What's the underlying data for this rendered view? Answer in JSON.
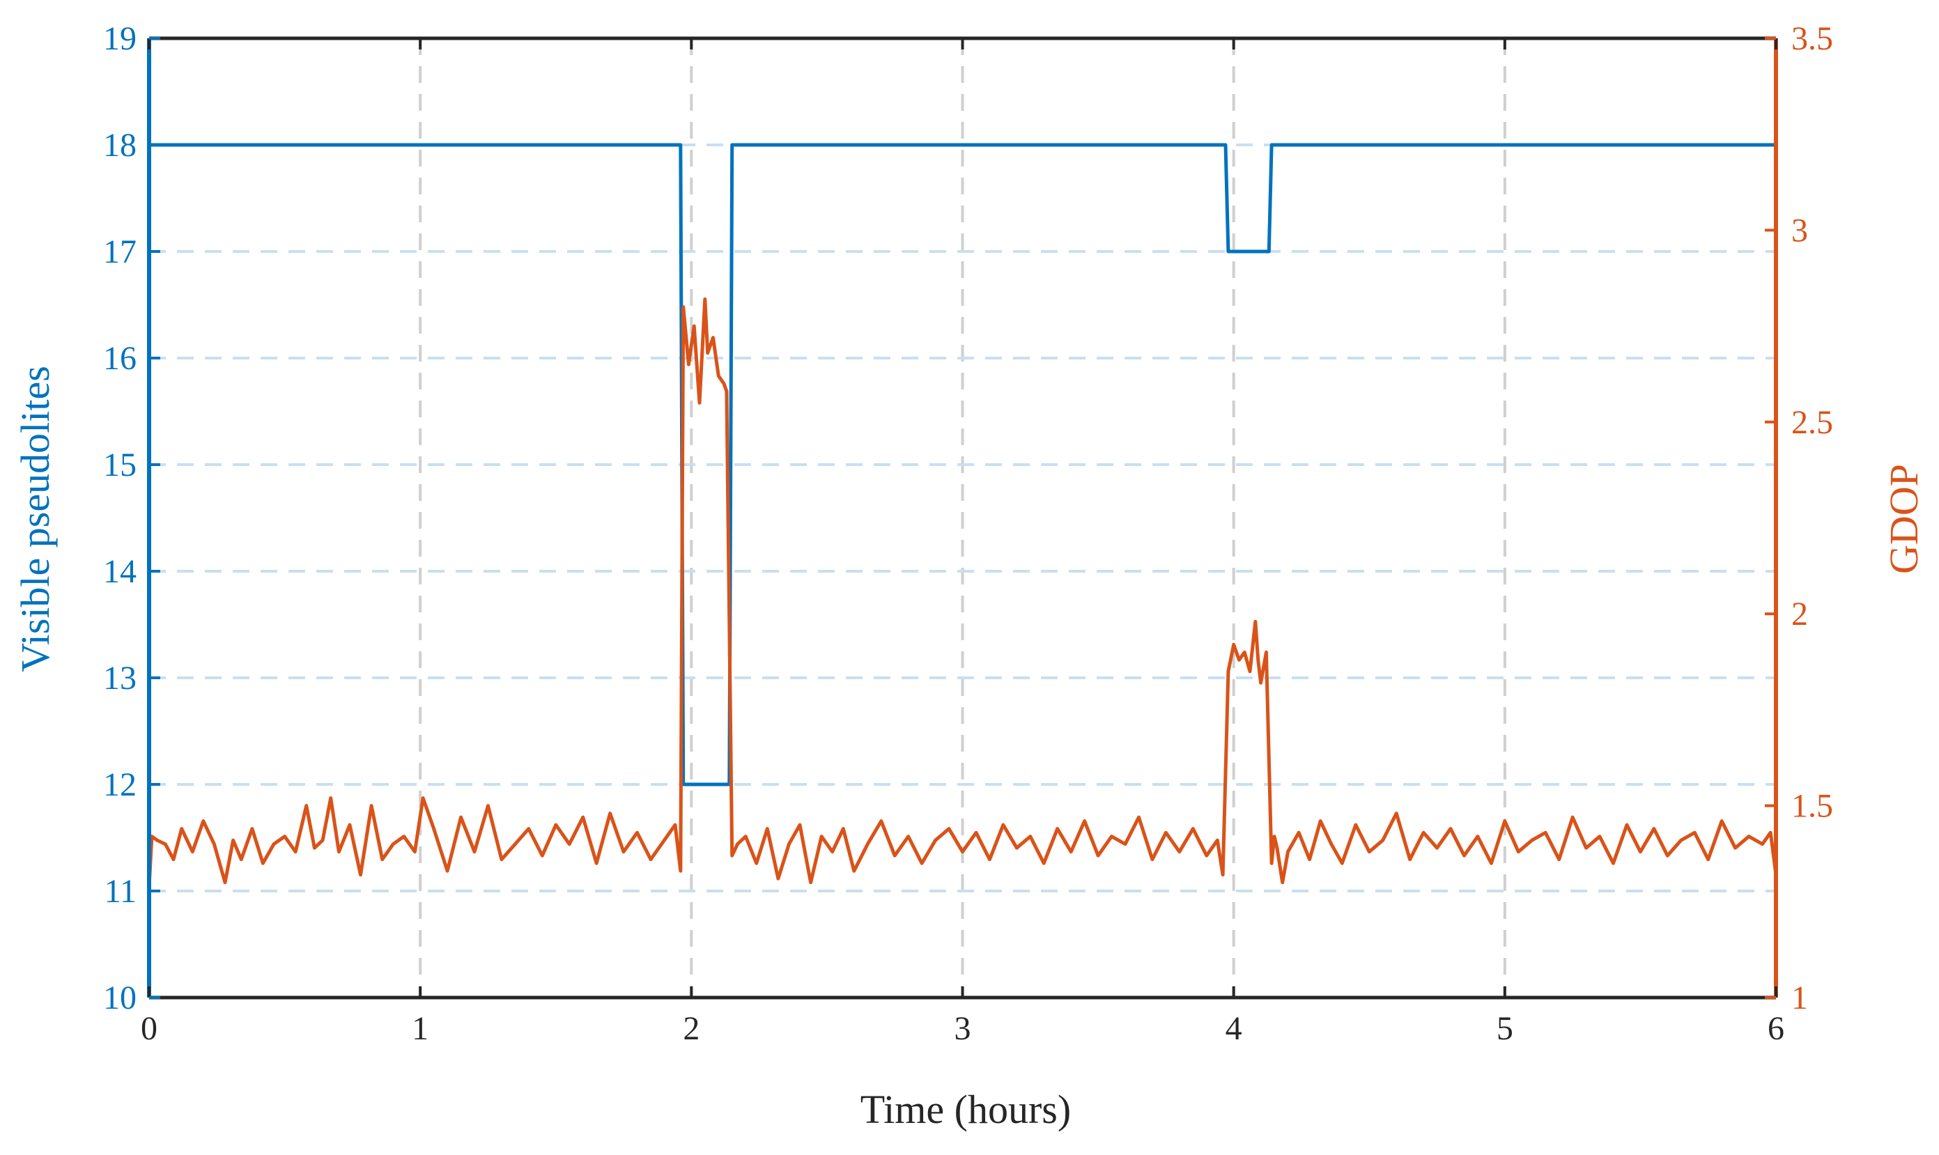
{
  "chart_data": {
    "type": "line",
    "xlabel": "Time (hours)",
    "ylabel_left": "Visible pseudolites",
    "ylabel_right": "GDOP",
    "xlim": [
      0,
      6
    ],
    "ylim_left": [
      10,
      19
    ],
    "ylim_right": [
      1,
      3.5
    ],
    "x_ticks": [
      "0",
      "1",
      "2",
      "3",
      "4",
      "5",
      "6"
    ],
    "y_left_ticks": [
      "10",
      "11",
      "12",
      "13",
      "14",
      "15",
      "16",
      "17",
      "18",
      "19"
    ],
    "y_right_ticks": [
      "1",
      "1.5",
      "2",
      "2.5",
      "3",
      "3.5"
    ],
    "grid": true,
    "colors": {
      "left": "#0072BD",
      "right": "#D95319",
      "axis": "#262626",
      "grid_x": "#cfcfcf",
      "grid_y": "#c9dff0"
    },
    "series": [
      {
        "axis": "left",
        "x": [
          0,
          1.96,
          1.97,
          2.14,
          2.15,
          3.97,
          3.98,
          4.13,
          4.14,
          6
        ],
        "y": [
          18,
          18,
          12,
          12,
          18,
          18,
          17,
          17,
          18,
          18
        ]
      },
      {
        "axis": "right",
        "x": [
          0,
          0.01,
          0.03,
          0.06,
          0.09,
          0.12,
          0.16,
          0.2,
          0.24,
          0.28,
          0.31,
          0.34,
          0.38,
          0.42,
          0.46,
          0.5,
          0.54,
          0.58,
          0.61,
          0.64,
          0.67,
          0.7,
          0.74,
          0.78,
          0.82,
          0.86,
          0.9,
          0.94,
          0.98,
          1.01,
          1.05,
          1.1,
          1.15,
          1.2,
          1.25,
          1.3,
          1.35,
          1.4,
          1.45,
          1.5,
          1.55,
          1.6,
          1.65,
          1.7,
          1.75,
          1.8,
          1.85,
          1.9,
          1.94,
          1.96,
          1.97,
          1.99,
          2.01,
          2.03,
          2.05,
          2.06,
          2.08,
          2.1,
          2.12,
          2.13,
          2.15,
          2.17,
          2.2,
          2.24,
          2.28,
          2.32,
          2.36,
          2.4,
          2.44,
          2.48,
          2.52,
          2.56,
          2.6,
          2.65,
          2.7,
          2.75,
          2.8,
          2.85,
          2.9,
          2.95,
          3.0,
          3.05,
          3.1,
          3.15,
          3.2,
          3.25,
          3.3,
          3.35,
          3.4,
          3.45,
          3.5,
          3.55,
          3.6,
          3.65,
          3.7,
          3.75,
          3.8,
          3.85,
          3.9,
          3.94,
          3.96,
          3.98,
          4.0,
          4.02,
          4.04,
          4.06,
          4.08,
          4.09,
          4.1,
          4.12,
          4.14,
          4.15,
          4.16,
          4.18,
          4.2,
          4.24,
          4.28,
          4.32,
          4.36,
          4.4,
          4.45,
          4.5,
          4.55,
          4.6,
          4.65,
          4.7,
          4.75,
          4.8,
          4.85,
          4.9,
          4.95,
          5.0,
          5.05,
          5.1,
          5.15,
          5.2,
          5.25,
          5.3,
          5.35,
          5.4,
          5.45,
          5.5,
          5.55,
          5.6,
          5.65,
          5.7,
          5.75,
          5.8,
          5.85,
          5.9,
          5.95,
          5.98,
          6.0
        ],
        "y": [
          1.29,
          1.42,
          1.41,
          1.4,
          1.36,
          1.44,
          1.38,
          1.46,
          1.4,
          1.3,
          1.41,
          1.36,
          1.44,
          1.35,
          1.4,
          1.42,
          1.38,
          1.5,
          1.39,
          1.41,
          1.52,
          1.38,
          1.45,
          1.32,
          1.5,
          1.36,
          1.4,
          1.42,
          1.38,
          1.52,
          1.44,
          1.33,
          1.47,
          1.38,
          1.5,
          1.36,
          1.4,
          1.44,
          1.37,
          1.45,
          1.4,
          1.47,
          1.35,
          1.48,
          1.38,
          1.43,
          1.36,
          1.41,
          1.45,
          1.33,
          2.8,
          2.65,
          2.75,
          2.55,
          2.82,
          2.68,
          2.72,
          2.62,
          2.6,
          2.58,
          1.37,
          1.4,
          1.42,
          1.35,
          1.44,
          1.31,
          1.4,
          1.45,
          1.3,
          1.42,
          1.38,
          1.44,
          1.33,
          1.4,
          1.46,
          1.37,
          1.42,
          1.35,
          1.41,
          1.44,
          1.38,
          1.43,
          1.36,
          1.45,
          1.39,
          1.42,
          1.35,
          1.44,
          1.38,
          1.46,
          1.37,
          1.42,
          1.4,
          1.47,
          1.36,
          1.43,
          1.38,
          1.44,
          1.37,
          1.41,
          1.32,
          1.85,
          1.92,
          1.88,
          1.9,
          1.85,
          1.98,
          1.88,
          1.82,
          1.9,
          1.35,
          1.42,
          1.39,
          1.3,
          1.38,
          1.43,
          1.36,
          1.46,
          1.4,
          1.35,
          1.45,
          1.38,
          1.41,
          1.48,
          1.36,
          1.43,
          1.39,
          1.44,
          1.37,
          1.42,
          1.35,
          1.46,
          1.38,
          1.41,
          1.43,
          1.36,
          1.47,
          1.39,
          1.42,
          1.35,
          1.45,
          1.38,
          1.44,
          1.37,
          1.41,
          1.43,
          1.36,
          1.46,
          1.39,
          1.42,
          1.4,
          1.43,
          1.32
        ]
      }
    ]
  }
}
